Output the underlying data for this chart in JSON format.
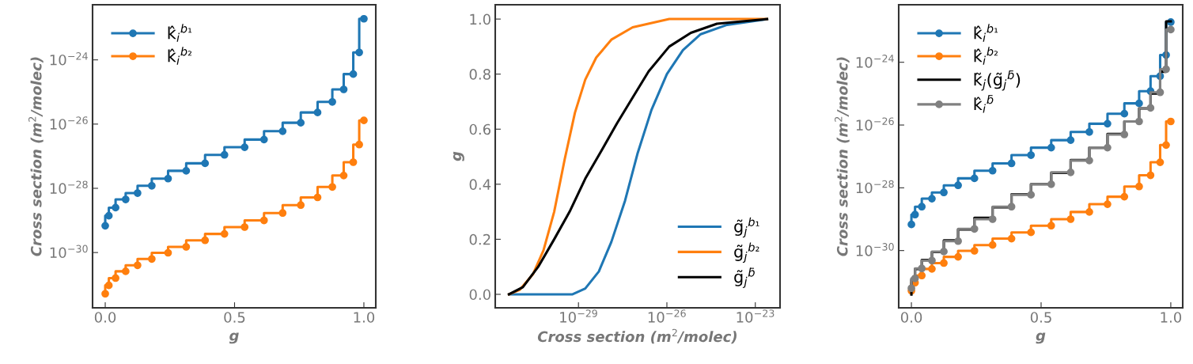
{
  "chart_data": [
    {
      "type": "step",
      "xlabel": "g",
      "ylabel": "Cross section (m$^{2}$/molec)",
      "log": "y",
      "marker": "circle",
      "legend": "top left",
      "grid": false,
      "x": [
        0,
        0.014,
        0.04,
        0.079,
        0.125,
        0.18,
        0.243,
        0.313,
        0.386,
        0.461,
        0.539,
        0.614,
        0.686,
        0.756,
        0.821,
        0.878,
        0.922,
        0.959,
        0.982,
        1.0
      ],
      "xlim": [
        -0.049,
        1.046
      ],
      "xticks": [
        {
          "value": 0,
          "label": "0.0"
        },
        {
          "value": 0.5,
          "label": "0.5"
        },
        {
          "value": 1,
          "label": "1.0"
        }
      ],
      "ylim": [
        1.9e-32,
        5.2e-23
      ],
      "yticks": [
        {
          "value": 1e-30,
          "label": "10$^{−30}$"
        },
        {
          "value": 1e-28,
          "label": "10$^{−28}$"
        },
        {
          "value": 1e-26,
          "label": "10$^{−26}$"
        },
        {
          "value": 1e-24,
          "label": "10$^{−24}$"
        }
      ],
      "series": [
        {
          "name": "k̂$_{i}$$^{b₁}$",
          "color": "#1f77b4",
          "values": [
            6.8e-30,
            1.4e-29,
            2.5e-29,
            4.5e-29,
            7.1e-29,
            1.2e-28,
            2e-28,
            3.5e-28,
            6e-28,
            1.1e-27,
            1.9e-27,
            3.3e-27,
            6e-27,
            1.1e-26,
            2.3e-26,
            4.9e-26,
            1.2e-25,
            3.6e-25,
            1.7e-24,
            1.9e-23
          ]
        },
        {
          "name": "k̂$_{i}$$^{b₂}$",
          "color": "#ff7f0e",
          "values": [
            5.2e-32,
            9.5e-32,
            1.6e-31,
            2.6e-31,
            4e-31,
            6.3e-31,
            9.8e-31,
            1.5e-30,
            2.4e-30,
            3.8e-30,
            6.2e-30,
            1e-29,
            1.7e-29,
            3e-29,
            5.2e-29,
            1.1e-28,
            2.5e-28,
            6.5e-28,
            2.3e-27,
            1.3e-26
          ]
        }
      ]
    },
    {
      "type": "line",
      "xlabel": "Cross section (m$^{2}$/molec)",
      "ylabel": "g",
      "log": "x",
      "marker": "none",
      "legend": "bottom right",
      "grid": false,
      "xlim": [
        1.5e-32,
        6.9e-23
      ],
      "xticks": [
        {
          "value": 1e-29,
          "label": "10$^{−29}$"
        },
        {
          "value": 1e-26,
          "label": "10$^{−26}$"
        },
        {
          "value": 1e-23,
          "label": "10$^{−23}$"
        }
      ],
      "ylim": [
        -0.049,
        1.052
      ],
      "yticks": [
        {
          "value": 0,
          "label": "0.0"
        },
        {
          "value": 0.2,
          "label": "0.2"
        },
        {
          "value": 0.4,
          "label": "0.4"
        },
        {
          "value": 0.6,
          "label": "0.6"
        },
        {
          "value": 0.8,
          "label": "0.8"
        },
        {
          "value": 1,
          "label": "1.0"
        }
      ],
      "series": [
        {
          "name": "g̃$_{j}$$^{b₁}$",
          "color": "#1f77b4",
          "x": [
            4.4e-32,
            6.3e-30,
            1.7e-29,
            4.9e-29,
            1.3e-28,
            3.8e-28,
            1e-27,
            3e-27,
            1e-26,
            3.5e-26,
            1.4e-25,
            1.1e-24,
            2.5e-23
          ],
          "values": [
            0,
            0,
            0.021,
            0.083,
            0.19,
            0.34,
            0.51,
            0.67,
            0.8,
            0.887,
            0.945,
            0.979,
            1.0
          ]
        },
        {
          "name": "g̃$_{j}$$^{b₂}$",
          "color": "#ff7f0e",
          "x": [
            4.4e-32,
            1e-31,
            2.9e-31,
            6.5e-31,
            1.5e-30,
            3.4e-30,
            7.6e-30,
            1.7e-29,
            4e-29,
            1.3e-28,
            6.9e-28,
            1.2e-26,
            2.5e-23
          ],
          "values": [
            0,
            0.016,
            0.074,
            0.16,
            0.3,
            0.49,
            0.66,
            0.78,
            0.86,
            0.925,
            0.97,
            1.0,
            1.0
          ]
        },
        {
          "name": "g̃$_{j}$$^{b̄}$",
          "color": "#000000",
          "x": [
            4.4e-32,
            1.3e-31,
            4.3e-31,
            1.5e-30,
            5e-30,
            1.7e-29,
            5.9e-29,
            2e-28,
            6.9e-28,
            2.4e-27,
            1.2e-26,
            6.5e-26,
            5e-25,
            2.5e-23
          ],
          "values": [
            0,
            0.026,
            0.1,
            0.2,
            0.3,
            0.42,
            0.52,
            0.62,
            0.715,
            0.81,
            0.9,
            0.95,
            0.983,
            1.0
          ]
        }
      ]
    },
    {
      "type": "step",
      "xlabel": "g",
      "ylabel": "Cross section (m$^{2}$/molec)",
      "log": "y",
      "marker": "circle",
      "legend": "top left",
      "grid": false,
      "x": [
        0,
        0.014,
        0.04,
        0.079,
        0.125,
        0.18,
        0.243,
        0.313,
        0.386,
        0.461,
        0.539,
        0.614,
        0.686,
        0.756,
        0.821,
        0.878,
        0.922,
        0.959,
        0.982,
        1.0
      ],
      "xlim": [
        -0.049,
        1.046
      ],
      "xticks": [
        {
          "value": 0,
          "label": "0.0"
        },
        {
          "value": 0.5,
          "label": "0.5"
        },
        {
          "value": 1,
          "label": "1.0"
        }
      ],
      "ylim": [
        1.5e-32,
        6.8e-23
      ],
      "yticks": [
        {
          "value": 1e-30,
          "label": "10$^{−30}$"
        },
        {
          "value": 1e-28,
          "label": "10$^{−28}$"
        },
        {
          "value": 1e-26,
          "label": "10$^{−26}$"
        },
        {
          "value": 1e-24,
          "label": "10$^{−24}$"
        }
      ],
      "series": [
        {
          "name": "k̂$_{i}$$^{b₁}$",
          "color": "#1f77b4",
          "values": [
            6.8e-30,
            1.4e-29,
            2.5e-29,
            4.5e-29,
            7.1e-29,
            1.2e-28,
            2e-28,
            3.5e-28,
            6e-28,
            1.1e-27,
            1.9e-27,
            3.3e-27,
            6e-27,
            1.1e-26,
            2.3e-26,
            4.9e-26,
            1.2e-25,
            3.6e-25,
            1.7e-24,
            1.9e-23
          ]
        },
        {
          "name": "k̂$_{i}$$^{b₂}$",
          "color": "#ff7f0e",
          "values": [
            5.2e-32,
            9.5e-32,
            1.6e-31,
            2.6e-31,
            4e-31,
            6.3e-31,
            9.8e-31,
            1.5e-30,
            2.4e-30,
            3.8e-30,
            6.2e-30,
            1e-29,
            1.7e-29,
            3e-29,
            5.2e-29,
            1.1e-28,
            2.5e-28,
            6.5e-28,
            2.3e-27,
            1.3e-26
          ]
        },
        {
          "name": "k̃$_{j}$(g̃$_{j}$$^{b̄}$)",
          "color": "#000000",
          "marker": "none",
          "values": [
            4e-32,
            1.2e-31,
            2.6e-31,
            5e-31,
            9e-31,
            2.1e-30,
            4.7e-30,
            1.1e-29,
            2.4e-29,
            6.2e-29,
            1.3e-28,
            3e-28,
            7.6e-28,
            1.9e-27,
            5.2e-27,
            1.3e-26,
            3.4e-26,
            1e-25,
            5e-25,
            2e-23
          ]
        },
        {
          "name": "k̂$_{i}$$^{b̄}$",
          "color": "#808080",
          "values": [
            6.3e-32,
            1.3e-31,
            2.7e-31,
            4.8e-31,
            9.3e-31,
            2e-30,
            4.9e-30,
            1e-29,
            2.5e-29,
            6e-29,
            1.3e-28,
            3.1e-28,
            7.4e-28,
            1.9e-27,
            5e-27,
            1.3e-26,
            3.5e-26,
            1.1e-25,
            6e-25,
            1.1e-23
          ]
        }
      ]
    }
  ]
}
